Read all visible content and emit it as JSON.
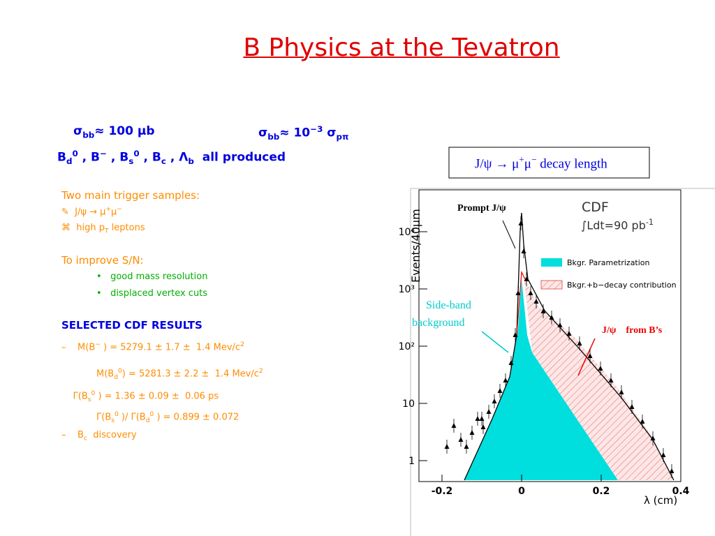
{
  "header": {
    "title": "B Physics at the Tevatron"
  },
  "body": {
    "lines": [
      {
        "parts": [
          "σ",
          {
            "sub": "bb"
          },
          "≈ 100 μb"
        ]
      },
      {
        "parts": [
          "σ",
          {
            "sub": "bb"
          },
          "≈ 10",
          {
            "sup": "−3"
          },
          " σ",
          {
            "sub": "pπ"
          }
        ]
      },
      {
        "parts": [
          "B",
          {
            "sub": "d"
          },
          {
            "sup": "0"
          },
          " , B",
          {
            "sup": "−"
          },
          " , B",
          {
            "sub": "s"
          },
          {
            "sup": "0"
          },
          " , B",
          {
            "sub": "c"
          },
          " , Λ",
          {
            "sub": "b"
          },
          "  all produced"
        ]
      },
      {
        "parts": [
          "Two main trigger samples:"
        ]
      },
      {
        "parts": [
          "✎  J/ψ → μ",
          {
            "sup": "+"
          },
          "μ",
          {
            "sup": "−"
          }
        ]
      },
      {
        "parts": [
          "⌘  high p",
          {
            "sub": "T"
          },
          " leptons"
        ]
      },
      {
        "parts": [
          "To improve S/N:"
        ]
      },
      {
        "parts": [
          "•   good mass resolution"
        ]
      },
      {
        "parts": [
          "•   displaced vertex cuts"
        ]
      },
      {
        "parts": [
          "SELECTED CDF RESULTS"
        ]
      },
      {
        "parts": [
          "–    M(B",
          {
            "sup": "−"
          },
          " ) = 5279.1 ± 1.7 ±  1.4 Mev/c",
          {
            "sup": "2"
          }
        ]
      },
      {
        "parts": [
          "M(B",
          {
            "sub": "d"
          },
          {
            "sup": "0"
          },
          ") = 5281.3 ± 2.2 ±  1.4 Mev/c",
          {
            "sup": "2"
          }
        ]
      },
      {
        "parts": [
          "    Γ(B",
          {
            "sub": "s"
          },
          {
            "sup": "0"
          },
          " ) = 1.36 ± 0.09 ±  0.06 ps"
        ]
      },
      {
        "parts": [
          "Γ(B",
          {
            "sub": "s"
          },
          {
            "sup": "0"
          },
          " )/ Γ(B",
          {
            "sub": "d"
          },
          {
            "sup": "0"
          },
          " ) = 0.899 ± 0.072"
        ]
      },
      {
        "parts": [
          "–    B",
          {
            "sub": "c"
          },
          "  discovery"
        ]
      }
    ]
  },
  "figure": {
    "caption": {
      "parts": [
        "J/ψ → μ",
        {
          "sup": "+"
        },
        "μ",
        {
          "sup": "−"
        },
        " decay length"
      ]
    },
    "labels": [
      {
        "parts": [
          "Prompt J/ψ"
        ]
      },
      {
        "parts": [
          "CDF"
        ]
      },
      {
        "parts": [
          "∫Ldt=90 pb",
          {
            "sup": "-1"
          }
        ]
      },
      {
        "parts": [
          "Bkgr. Parametrization"
        ]
      },
      {
        "parts": [
          "Bkgr.+b−decay contribution"
        ]
      },
      {
        "parts": [
          "Side-band"
        ]
      },
      {
        "parts": [
          "background"
        ]
      },
      {
        "parts": [
          "J/ψ    from B’s"
        ]
      },
      {
        "parts": [
          "Events/40μm"
        ]
      },
      {
        "parts": [
          "λ (cm)"
        ]
      }
    ],
    "xticks": [
      -0.2,
      0,
      0.2,
      0.4
    ],
    "ylog": true,
    "yticks": [
      1,
      10,
      {
        "value": 100,
        "label": "10²"
      },
      {
        "value": 1000,
        "label": "10³"
      },
      {
        "value": 10000,
        "label": "10⁴"
      }
    ]
  }
}
